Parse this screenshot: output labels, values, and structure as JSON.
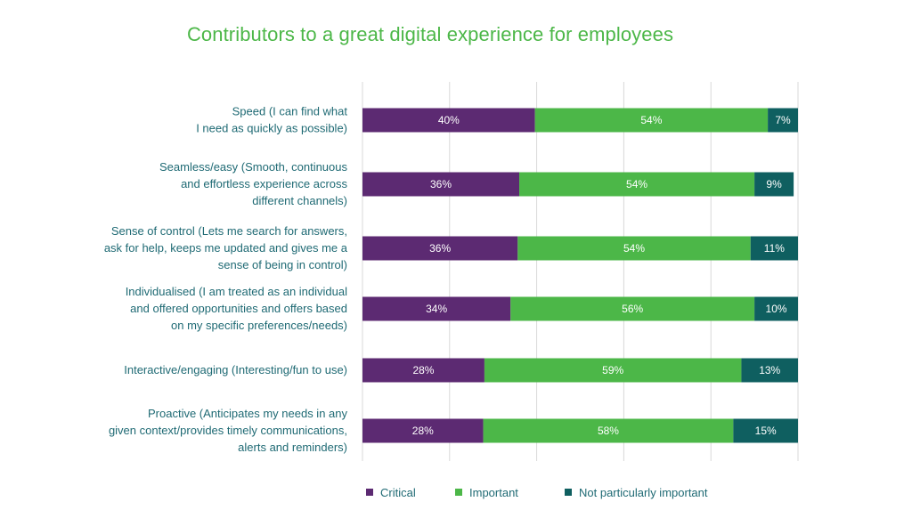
{
  "chart_data": {
    "type": "bar",
    "orientation": "horizontal",
    "stacked": true,
    "title": "Contributors to a great digital experience for employees",
    "categories": [
      [
        "Speed (I can find what",
        "I need as quickly as possible)"
      ],
      [
        "Seamless/easy (Smooth, continuous",
        "and effortless experience across",
        "different channels)"
      ],
      [
        "Sense of control (Lets me search for answers,",
        "ask for help, keeps me updated and gives me a",
        "sense of being in control)"
      ],
      [
        "Individualised (I am treated as an individual",
        "and offered opportunities and offers based",
        "on my specific preferences/needs)"
      ],
      [
        "Interactive/engaging (Interesting/fun to use)"
      ],
      [
        "Proactive (Anticipates my needs in any",
        "given context/provides timely communications,",
        "alerts and reminders)"
      ]
    ],
    "series": [
      {
        "name": "Critical",
        "color": "#5c2a72",
        "values": [
          40,
          36,
          36,
          34,
          28,
          28
        ],
        "labels": [
          "40%",
          "36%",
          "36%",
          "34%",
          "28%",
          "28%"
        ]
      },
      {
        "name": "Important",
        "color": "#4cb748",
        "values": [
          54,
          54,
          54,
          56,
          59,
          58
        ],
        "labels": [
          "54%",
          "54%",
          "54%",
          "56%",
          "59%",
          "58%"
        ]
      },
      {
        "name": "Not particularly important",
        "color": "#0f5f60",
        "values": [
          7,
          9,
          11,
          10,
          13,
          15
        ],
        "labels": [
          "7%",
          "9%",
          "11%",
          "10%",
          "13%",
          "15%"
        ]
      }
    ],
    "xlim": [
      0,
      100
    ],
    "grid": true,
    "legend_position": "bottom"
  }
}
